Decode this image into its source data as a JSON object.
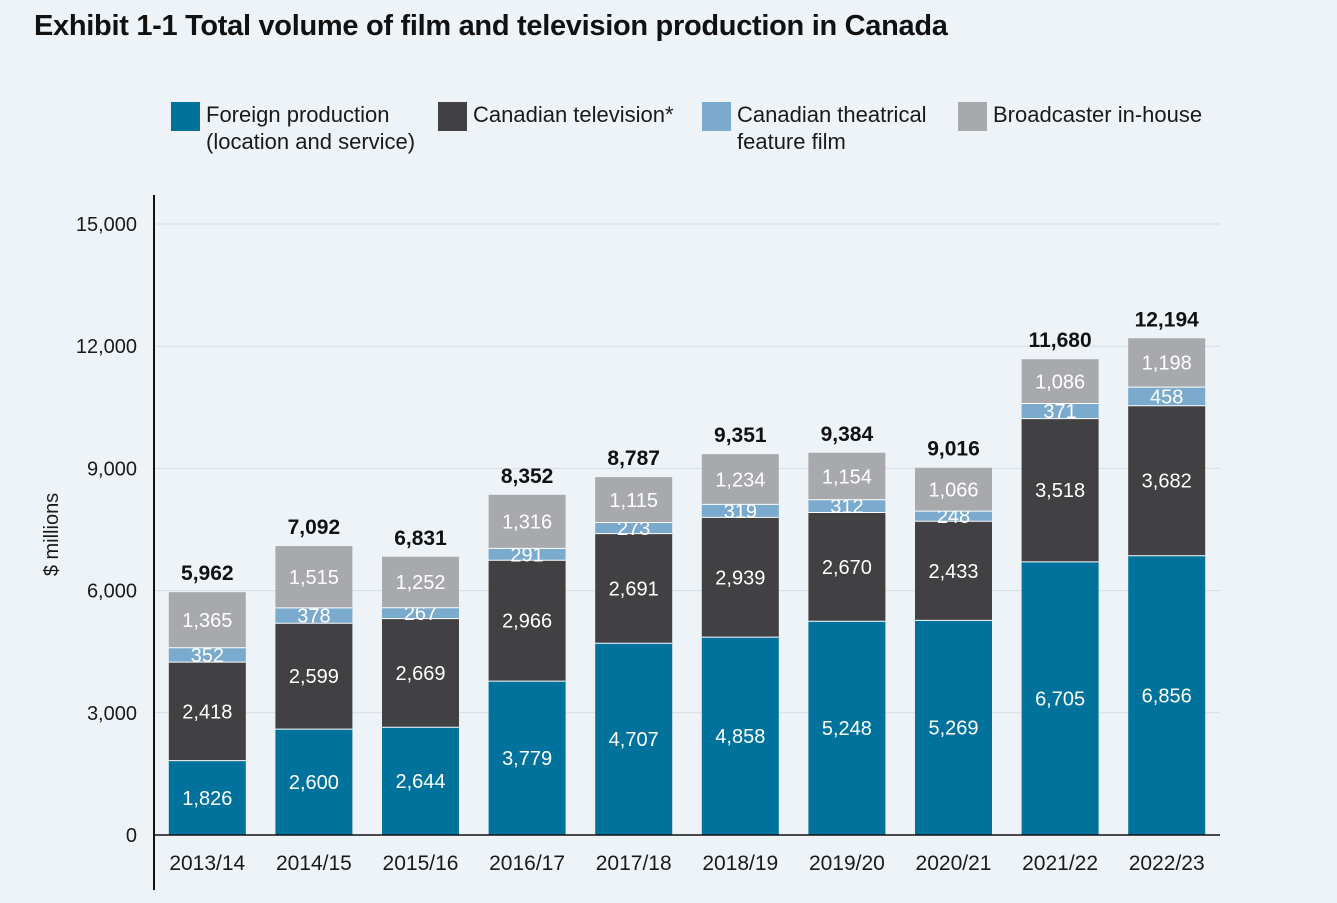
{
  "chart_data": {
    "type": "bar",
    "stacked": true,
    "title": "Exhibit 1-1  Total volume of film and television production in Canada",
    "ylabel": "$ millions",
    "xlabel": "",
    "ylim": [
      0,
      15000
    ],
    "yticks": [
      0,
      3000,
      6000,
      9000,
      12000,
      15000
    ],
    "ytick_labels": [
      "0",
      "3,000",
      "6,000",
      "9,000",
      "12,000",
      "15,000"
    ],
    "grid": true,
    "legend_position": "top",
    "categories": [
      "2013/14",
      "2014/15",
      "2015/16",
      "2016/17",
      "2017/18",
      "2018/19",
      "2019/20",
      "2020/21",
      "2021/22",
      "2022/23"
    ],
    "series": [
      {
        "name": "Foreign production\n(location and service)",
        "color": "#00729b",
        "label_color": "#ffffff",
        "values": [
          1826,
          2600,
          2644,
          3779,
          4707,
          4858,
          5248,
          5269,
          6705,
          6856
        ],
        "labels": [
          "1,826",
          "2,600",
          "2,644",
          "3,779",
          "4,707",
          "4,858",
          "5,248",
          "5,269",
          "6,705",
          "6,856"
        ]
      },
      {
        "name": "Canadian television*",
        "color": "#414042",
        "label_color": "#ffffff",
        "values": [
          2418,
          2599,
          2669,
          2966,
          2691,
          2939,
          2670,
          2433,
          3518,
          3682
        ],
        "labels": [
          "2,418",
          "2,599",
          "2,669",
          "2,966",
          "2,691",
          "2,939",
          "2,670",
          "2,433",
          "3,518",
          "3,682"
        ]
      },
      {
        "name": "Canadian theatrical\nfeature film",
        "color": "#7aaace",
        "label_color": "#ffffff",
        "values": [
          352,
          378,
          267,
          291,
          273,
          319,
          312,
          248,
          371,
          458
        ],
        "labels": [
          "352",
          "378",
          "267",
          "291",
          "273",
          "319",
          "312",
          "248",
          "371",
          "458"
        ]
      },
      {
        "name": "Broadcaster in-house",
        "color": "#a7a9ac",
        "label_color": "#ffffff",
        "values": [
          1365,
          1515,
          1252,
          1316,
          1115,
          1234,
          1154,
          1066,
          1086,
          1198
        ],
        "labels": [
          "1,365",
          "1,515",
          "1,252",
          "1,316",
          "1,115",
          "1,234",
          "1,154",
          "1,066",
          "1,086",
          "1,198"
        ]
      }
    ],
    "totals": [
      5962,
      7092,
      6831,
      8352,
      8787,
      9351,
      9384,
      9016,
      11680,
      12194
    ],
    "total_labels": [
      "5,962",
      "7,092",
      "6,831",
      "8,352",
      "8,787",
      "9,351",
      "9,384",
      "9,016",
      "11,680",
      "12,194"
    ]
  }
}
